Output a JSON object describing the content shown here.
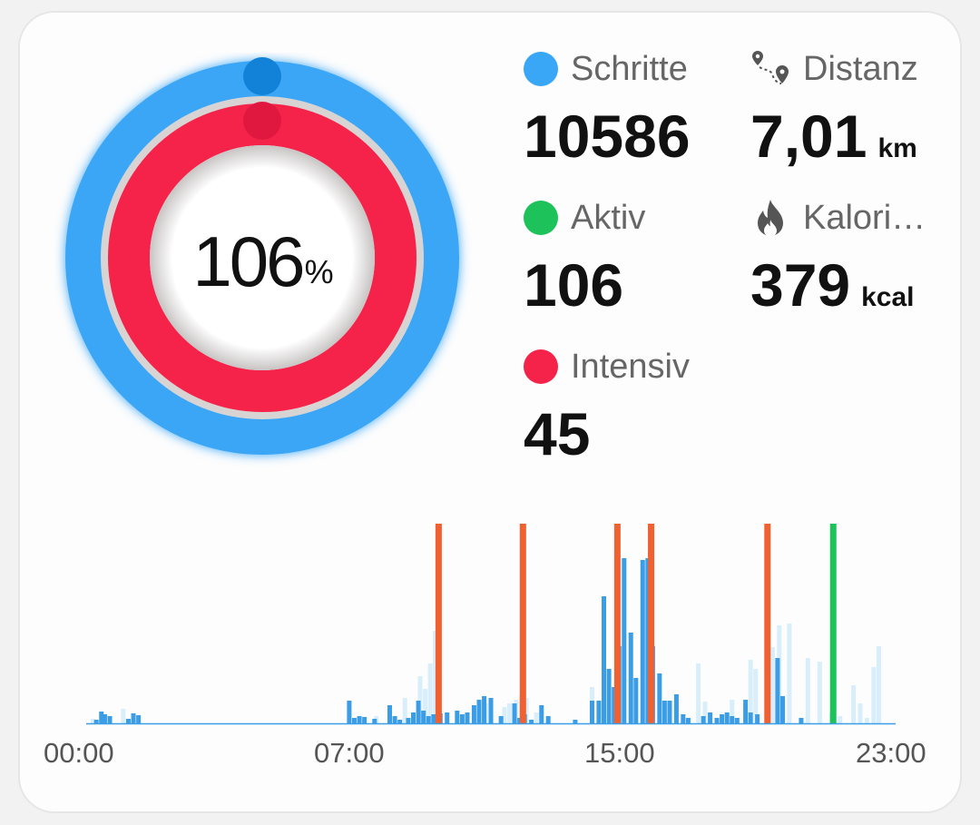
{
  "ring": {
    "percent": "106",
    "percent_unit": "%",
    "outer_color": "#3aa6f6",
    "inner_color": "#f5234a"
  },
  "stats": {
    "steps": {
      "label": "Schritte",
      "value": "10586",
      "color": "#3aa6f6"
    },
    "distance": {
      "label": "Distanz",
      "value": "7,01",
      "unit": "km",
      "icon": "route-pin-icon"
    },
    "active": {
      "label": "Aktiv",
      "value": "106",
      "color": "#1ec25a"
    },
    "calories": {
      "label": "Kalori…",
      "value": "379",
      "unit": "kcal",
      "icon": "flame-icon"
    },
    "intense": {
      "label": "Intensiv",
      "value": "45",
      "color": "#f5234a"
    }
  },
  "chart_data": {
    "type": "bar",
    "x_ticks": [
      "00:00",
      "07:00",
      "15:00",
      "23:00"
    ],
    "x_range_hours": [
      0,
      24
    ],
    "steps_per_bar_color": "#3b9de6",
    "faint_color": "#d9eefb",
    "bars": [
      [
        0.3,
        4
      ],
      [
        0.45,
        13
      ],
      [
        0.55,
        10
      ],
      [
        0.7,
        8
      ],
      [
        1.25,
        5
      ],
      [
        1.4,
        11
      ],
      [
        1.55,
        9
      ],
      [
        7.8,
        25
      ],
      [
        7.95,
        6
      ],
      [
        8.1,
        8
      ],
      [
        8.25,
        7
      ],
      [
        8.55,
        5
      ],
      [
        9.0,
        20
      ],
      [
        9.15,
        8
      ],
      [
        9.3,
        4
      ],
      [
        9.55,
        6
      ],
      [
        9.7,
        12
      ],
      [
        9.85,
        25
      ],
      [
        10.0,
        14
      ],
      [
        10.15,
        8
      ],
      [
        10.3,
        10
      ],
      [
        10.5,
        11
      ],
      [
        10.7,
        12
      ],
      [
        11.0,
        14
      ],
      [
        11.15,
        10
      ],
      [
        11.3,
        12
      ],
      [
        11.5,
        20
      ],
      [
        11.65,
        26
      ],
      [
        11.8,
        30
      ],
      [
        12.0,
        28
      ],
      [
        12.3,
        8
      ],
      [
        12.7,
        22
      ],
      [
        12.85,
        6
      ],
      [
        13.0,
        10
      ],
      [
        13.2,
        4
      ],
      [
        13.5,
        20
      ],
      [
        13.7,
        8
      ],
      [
        14.5,
        4
      ],
      [
        15.0,
        25
      ],
      [
        15.2,
        25
      ],
      [
        15.35,
        140
      ],
      [
        15.5,
        60
      ],
      [
        15.65,
        40
      ],
      [
        15.8,
        85
      ],
      [
        15.95,
        182
      ],
      [
        16.15,
        100
      ],
      [
        16.3,
        50
      ],
      [
        16.5,
        180
      ],
      [
        16.65,
        182
      ],
      [
        16.8,
        85
      ],
      [
        17.0,
        55
      ],
      [
        17.15,
        25
      ],
      [
        17.3,
        25
      ],
      [
        17.5,
        32
      ],
      [
        17.7,
        10
      ],
      [
        17.85,
        6
      ],
      [
        18.3,
        8
      ],
      [
        18.5,
        12
      ],
      [
        18.7,
        6
      ],
      [
        18.85,
        10
      ],
      [
        19.0,
        12
      ],
      [
        19.15,
        8
      ],
      [
        19.3,
        6
      ],
      [
        19.55,
        26
      ],
      [
        19.7,
        12
      ],
      [
        19.9,
        10
      ],
      [
        20.2,
        6
      ],
      [
        20.5,
        72
      ],
      [
        20.65,
        30
      ],
      [
        21.2,
        6
      ]
    ],
    "faint_bars": [
      [
        0.2,
        5
      ],
      [
        1.1,
        16
      ],
      [
        8.6,
        8
      ],
      [
        9.45,
        28
      ],
      [
        9.9,
        52
      ],
      [
        10.05,
        38
      ],
      [
        10.2,
        66
      ],
      [
        10.35,
        102
      ],
      [
        11.85,
        22
      ],
      [
        12.4,
        18
      ],
      [
        12.55,
        22
      ],
      [
        12.75,
        26
      ],
      [
        12.9,
        30
      ],
      [
        13.05,
        28
      ],
      [
        13.35,
        12
      ],
      [
        15.0,
        40
      ],
      [
        18.15,
        66
      ],
      [
        18.35,
        24
      ],
      [
        19.15,
        26
      ],
      [
        19.7,
        70
      ],
      [
        19.85,
        60
      ],
      [
        20.35,
        84
      ],
      [
        20.55,
        108
      ],
      [
        20.85,
        110
      ],
      [
        21.4,
        72
      ],
      [
        21.75,
        68
      ],
      [
        22.1,
        12
      ],
      [
        22.35,
        8
      ],
      [
        22.75,
        42
      ],
      [
        22.95,
        22
      ],
      [
        23.15,
        6
      ],
      [
        23.35,
        62
      ],
      [
        23.5,
        85
      ]
    ],
    "markers": [
      {
        "hour": 10.45,
        "color": "#f06030"
      },
      {
        "hour": 12.95,
        "color": "#f06030"
      },
      {
        "hour": 15.75,
        "color": "#f06030"
      },
      {
        "hour": 16.75,
        "color": "#f06030"
      },
      {
        "hour": 20.2,
        "color": "#f06030"
      },
      {
        "hour": 22.15,
        "color": "#1ec25a"
      }
    ]
  }
}
